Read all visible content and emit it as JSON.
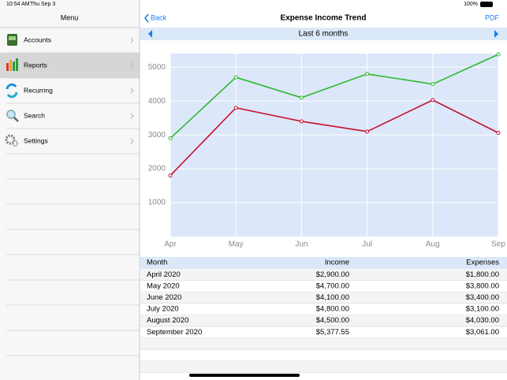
{
  "status_bar": {
    "time": "10:54 AM",
    "date": "Thu Sep 3",
    "battery": "100%"
  },
  "sidebar": {
    "title": "Menu",
    "items": [
      "Accounts",
      "Reports",
      "Recurring",
      "Search",
      "Settings"
    ]
  },
  "header": {
    "back": "Back",
    "title": "Expense Income Trend",
    "pdf": "PDF"
  },
  "period": "Last 6 months",
  "chart_data": {
    "type": "line",
    "categories": [
      "Apr",
      "May",
      "Jun",
      "Jul",
      "Aug",
      "Sep"
    ],
    "series": [
      {
        "name": "Income",
        "color": "#2eb82e",
        "values": [
          2900,
          4700,
          4100,
          4800,
          4500,
          5377.55
        ]
      },
      {
        "name": "Expenses",
        "color": "#c8102e",
        "values": [
          1800,
          3800,
          3400,
          3100,
          4030,
          3061
        ]
      }
    ],
    "ylim": [
      0,
      5400
    ],
    "yticks": [
      1000,
      2000,
      3000,
      4000,
      5000
    ],
    "grid": true
  },
  "table": {
    "month_header": "Month",
    "rows": [
      [
        "April 2020",
        "$2,900.00",
        "$1,800.00"
      ],
      [
        "May 2020",
        "$4,700.00",
        "$3,800.00"
      ],
      [
        "June 2020",
        "$4,100.00",
        "$3,400.00"
      ],
      [
        "July 2020",
        "$4,800.00",
        "$3,100.00"
      ],
      [
        "August 2020",
        "$4,500.00",
        "$4,030.00"
      ],
      [
        "September 2020",
        "$5,377.55",
        "$3,061.00"
      ]
    ]
  }
}
